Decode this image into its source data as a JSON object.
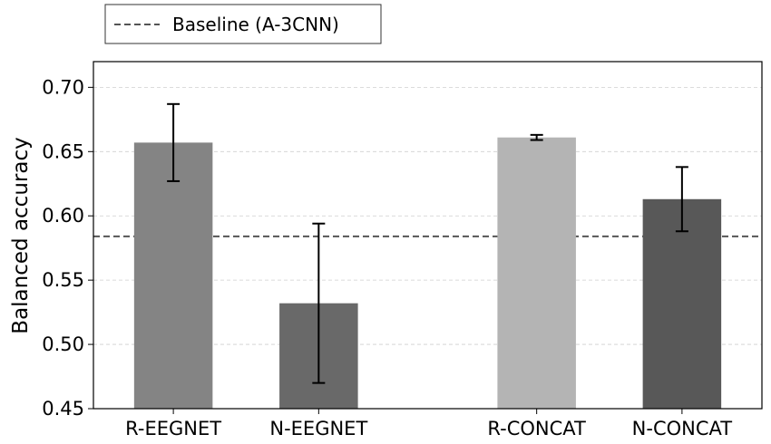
{
  "chart_data": {
    "type": "bar",
    "title": "",
    "xlabel": "",
    "ylabel": "Balanced accuracy",
    "ylim": [
      0.45,
      0.72
    ],
    "yticks": [
      0.45,
      0.5,
      0.55,
      0.6,
      0.65,
      0.7
    ],
    "ytick_labels": [
      "0.45",
      "0.50",
      "0.55",
      "0.60",
      "0.65",
      "0.70"
    ],
    "grid": "horizontal dashed",
    "categories": [
      "R-EEGNET",
      "N-EEGNET",
      "R-CONCAT",
      "N-CONCAT"
    ],
    "x_positions": [
      0,
      1,
      2.5,
      3.5
    ],
    "values": [
      0.657,
      0.532,
      0.661,
      0.613
    ],
    "errors": [
      0.03,
      0.062,
      0.002,
      0.025
    ],
    "colors": [
      "#848484",
      "#696969",
      "#b4b4b4",
      "#585858"
    ],
    "baseline": {
      "label": "Baseline (A-3CNN)",
      "value": 0.584,
      "color": "#555555"
    },
    "legend_placement": "above plot, top-left"
  }
}
